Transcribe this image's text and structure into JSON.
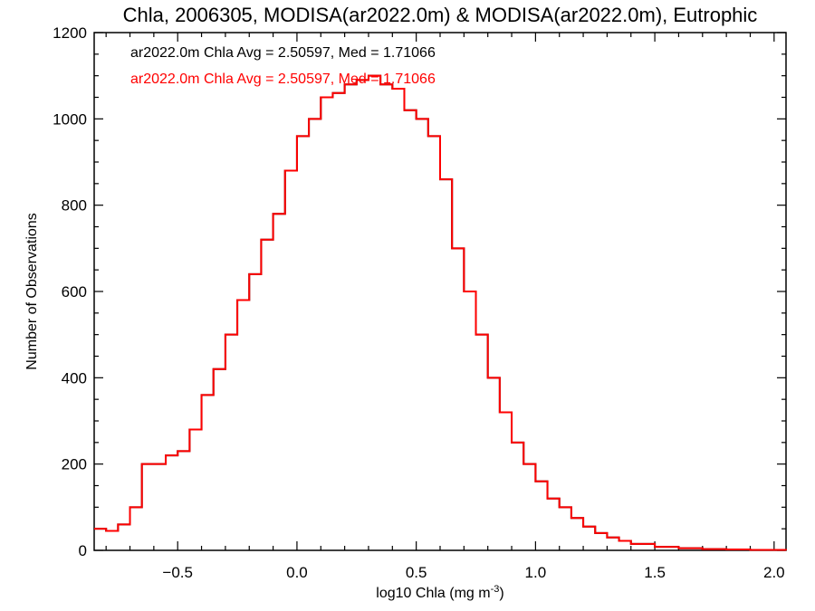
{
  "chart_data": {
    "type": "line",
    "title": "Chla, 2006305, MODISA(ar2022.0m) & MODISA(ar2022.0m), Eutrophic",
    "xlabel": "log10 Chla (mg m",
    "xlabel_sup": "-3",
    "xlabel_close": ")",
    "ylabel": "Number of Observations",
    "xlim": [
      -0.85,
      2.05
    ],
    "ylim": [
      0,
      1200
    ],
    "x_ticks": [
      -0.5,
      0.0,
      0.5,
      1.0,
      1.5,
      2.0
    ],
    "x_tick_labels": [
      "−0.5",
      "0.0",
      "0.5",
      "1.0",
      "1.5",
      "2.0"
    ],
    "y_ticks": [
      0,
      200,
      400,
      600,
      800,
      1000,
      1200
    ],
    "y_tick_labels": [
      "0",
      "200",
      "400",
      "600",
      "800",
      "1000",
      "1200"
    ],
    "grid": false,
    "legend_position": "top-left",
    "series": [
      {
        "name": "ar2022.0m Chla Avg = 2.50597, Med = 1.71066",
        "color": "#000000",
        "x": [
          -0.85,
          -0.8,
          -0.75,
          -0.7,
          -0.65,
          -0.6,
          -0.55,
          -0.5,
          -0.45,
          -0.4,
          -0.35,
          -0.3,
          -0.25,
          -0.2,
          -0.15,
          -0.1,
          -0.05,
          0.0,
          0.05,
          0.1,
          0.15,
          0.2,
          0.25,
          0.3,
          0.35,
          0.4,
          0.45,
          0.5,
          0.55,
          0.6,
          0.65,
          0.7,
          0.75,
          0.8,
          0.85,
          0.9,
          0.95,
          1.0,
          1.05,
          1.1,
          1.15,
          1.2,
          1.25,
          1.3,
          1.35,
          1.4,
          1.5,
          1.6,
          1.7,
          1.8,
          1.9,
          2.05
        ],
        "y": [
          50,
          45,
          60,
          100,
          200,
          200,
          220,
          230,
          280,
          360,
          420,
          500,
          580,
          640,
          720,
          780,
          880,
          960,
          1000,
          1050,
          1060,
          1080,
          1090,
          1100,
          1080,
          1070,
          1020,
          1000,
          960,
          860,
          700,
          600,
          500,
          400,
          320,
          250,
          200,
          160,
          120,
          100,
          75,
          55,
          40,
          30,
          22,
          15,
          8,
          5,
          3,
          2,
          1,
          0
        ]
      },
      {
        "name": "ar2022.0m Chla Avg = 2.50597, Med = 1.71066",
        "color": "#ff0000",
        "x": [
          -0.85,
          -0.8,
          -0.75,
          -0.7,
          -0.65,
          -0.6,
          -0.55,
          -0.5,
          -0.45,
          -0.4,
          -0.35,
          -0.3,
          -0.25,
          -0.2,
          -0.15,
          -0.1,
          -0.05,
          0.0,
          0.05,
          0.1,
          0.15,
          0.2,
          0.25,
          0.3,
          0.35,
          0.4,
          0.45,
          0.5,
          0.55,
          0.6,
          0.65,
          0.7,
          0.75,
          0.8,
          0.85,
          0.9,
          0.95,
          1.0,
          1.05,
          1.1,
          1.15,
          1.2,
          1.25,
          1.3,
          1.35,
          1.4,
          1.5,
          1.6,
          1.7,
          1.8,
          1.9,
          2.05
        ],
        "y": [
          50,
          45,
          60,
          100,
          200,
          200,
          220,
          230,
          280,
          360,
          420,
          500,
          580,
          640,
          720,
          780,
          880,
          960,
          1000,
          1050,
          1060,
          1080,
          1090,
          1100,
          1080,
          1070,
          1020,
          1000,
          960,
          860,
          700,
          600,
          500,
          400,
          320,
          250,
          200,
          160,
          120,
          100,
          75,
          55,
          40,
          30,
          22,
          15,
          8,
          5,
          3,
          2,
          1,
          0
        ]
      }
    ]
  }
}
